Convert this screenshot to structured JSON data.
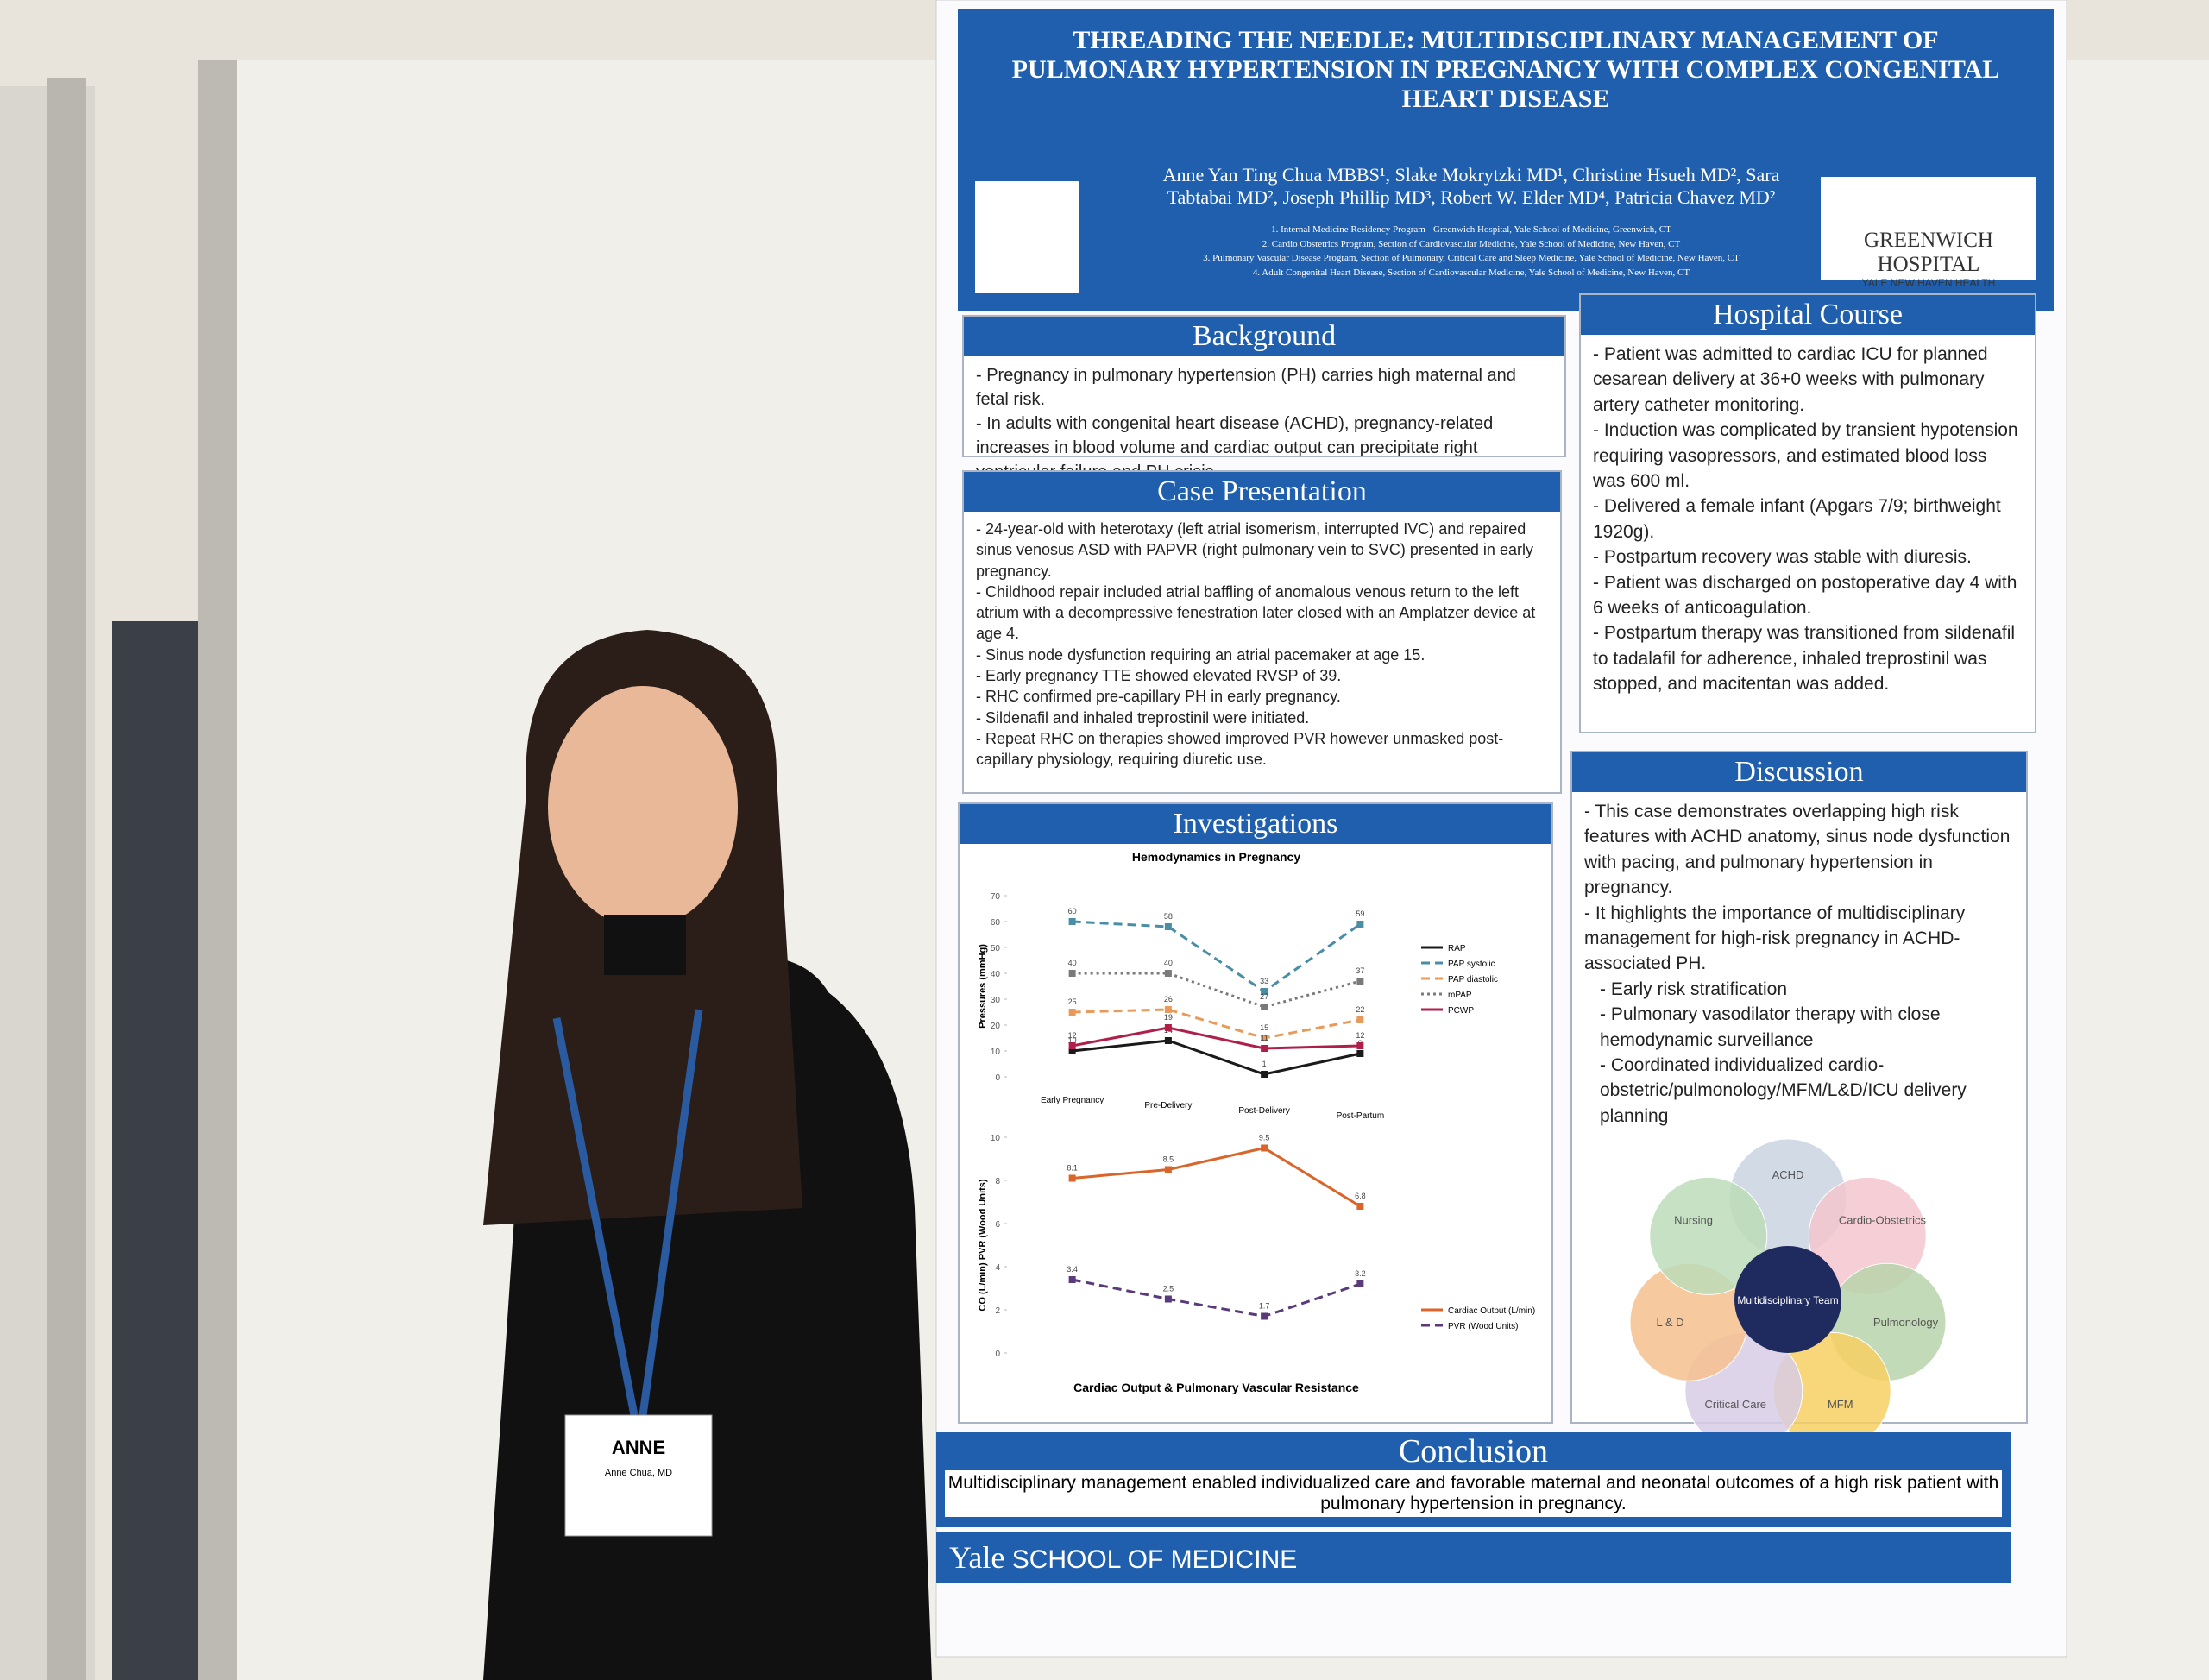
{
  "header": {
    "title": "THREADING THE NEEDLE: MULTIDISCIPLINARY MANAGEMENT OF PULMONARY HYPERTENSION IN PREGNANCY WITH COMPLEX CONGENITAL HEART DISEASE",
    "authors": "Anne Yan Ting Chua MBBS¹, Slake Mokrytzki MD¹, Christine Hsueh MD², Sara Tabtabai MD², Joseph Phillip MD³, Robert W. Elder MD⁴, Patricia Chavez MD²",
    "affiliations": [
      "1. Internal Medicine Residency Program - Greenwich Hospital, Yale School of Medicine, Greenwich, CT",
      "2. Cardio Obstetrics Program, Section of Cardiovascular Medicine, Yale School of Medicine, New Haven, CT",
      "3. Pulmonary Vascular Disease Program, Section of Pulmonary, Critical Care and Sleep Medicine, Yale School of Medicine, New Haven, CT",
      "4. Adult Congenital Heart Disease, Section of Cardiovascular Medicine, Yale School of Medicine, New Haven, CT"
    ],
    "logo": {
      "name": "GREENWICH HOSPITAL",
      "sub": "YALE NEW HAVEN HEALTH"
    }
  },
  "background": {
    "heading": "Background",
    "items": [
      "Pregnancy in pulmonary hypertension (PH) carries high maternal and fetal risk.",
      "In adults with congenital heart disease (ACHD), pregnancy-related increases in blood volume and cardiac output can precipitate right ventricular failure and PH crisis."
    ]
  },
  "case_presentation": {
    "heading": "Case Presentation",
    "items": [
      "24-year-old with heterotaxy (left atrial isomerism, interrupted IVC) and repaired sinus venosus ASD with PAPVR (right pulmonary vein to SVC) presented in early pregnancy.",
      "Childhood repair included atrial baffling of anomalous venous return to the left atrium with a decompressive fenestration later closed with an Amplatzer device at age 4.",
      "Sinus node dysfunction requiring an atrial pacemaker at age 15.",
      "Early pregnancy TTE showed elevated RVSP of 39.",
      "RHC confirmed pre-capillary PH in early pregnancy.",
      "Sildenafil and inhaled treprostinil were initiated.",
      "Repeat RHC on therapies showed improved PVR however unmasked post-capillary physiology, requiring diuretic use."
    ]
  },
  "investigations": {
    "heading": "Investigations",
    "charts": [
      {
        "type": "line",
        "title": "Hemodynamics in Pregnancy",
        "y_label": "Pressures (mmHg)",
        "categories": [
          "Early Pregnancy",
          "Pre-Delivery",
          "Post-Delivery",
          "Post-Partum"
        ],
        "ylim": [
          0,
          70
        ],
        "yticks": [
          0,
          10,
          20,
          30,
          40,
          50,
          60,
          70
        ],
        "series": [
          {
            "name": "RAP",
            "color": "#1a1a1a",
            "style": "solid",
            "values": [
              10,
              14,
              1,
              9
            ]
          },
          {
            "name": "PAP systolic",
            "color": "#4a8ea6",
            "style": "dashed",
            "values": [
              60,
              58,
              33,
              59
            ]
          },
          {
            "name": "PAP diastolic",
            "color": "#e89a5a",
            "style": "dashed",
            "values": [
              25,
              26,
              15,
              22
            ]
          },
          {
            "name": "mPAP",
            "color": "#7a7a7a",
            "style": "dotted",
            "values": [
              40,
              40,
              27,
              37
            ]
          },
          {
            "name": "PCWP",
            "color": "#b01e4a",
            "style": "solid",
            "values": [
              12,
              19,
              11,
              12
            ]
          }
        ]
      },
      {
        "type": "line",
        "title": "Cardiac Output & Pulmonary Vascular Resistance",
        "y_label": "CO (L/min)     PVR (Wood Units)",
        "ylim": [
          0,
          10
        ],
        "yticks": [
          0,
          2,
          4,
          6,
          8,
          10
        ],
        "series": [
          {
            "name": "Cardiac Output (L/min)",
            "color": "#d9652a",
            "style": "solid",
            "values": [
              8.1,
              8.5,
              9.5,
              6.8
            ]
          },
          {
            "name": "PVR (Wood Units)",
            "color": "#5a3a7a",
            "style": "dashed",
            "values": [
              3.4,
              2.5,
              1.7,
              3.2
            ]
          }
        ]
      }
    ]
  },
  "hospital_course": {
    "heading": "Hospital Course",
    "items": [
      "Patient was admitted to cardiac ICU for planned cesarean delivery at 36+0 weeks with pulmonary artery catheter monitoring.",
      "Induction was complicated by transient hypotension requiring vasopressors, and estimated blood loss was 600 ml.",
      "Delivered a female infant (Apgars 7/9; birthweight 1920g).",
      "Postpartum recovery was stable with diuresis.",
      "Patient was discharged on postoperative day 4 with 6 weeks of anticoagulation.",
      "Postpartum therapy was transitioned from sildenafil to tadalafil for adherence, inhaled treprostinil was stopped, and macitentan was added."
    ]
  },
  "discussion": {
    "heading": "Discussion",
    "items": [
      "This case demonstrates overlapping high risk features with ACHD anatomy, sinus node dysfunction with pacing, and pulmonary hypertension in pregnancy.",
      "It highlights the importance of multidisciplinary management for high-risk pregnancy in ACHD-associated PH."
    ],
    "subitems": [
      "Early risk stratification",
      "Pulmonary vasodilator therapy with close hemodynamic surveillance",
      "Coordinated individualized cardio-obstetric/pulmonology/MFM/L&D/ICU delivery planning"
    ],
    "diagram": {
      "center": "Multidisciplinary Team",
      "petals": [
        {
          "label": "ACHD",
          "color": "#c9d3e0"
        },
        {
          "label": "Cardio-Obstetrics",
          "color": "#f3c6cf"
        },
        {
          "label": "Pulmonology",
          "color": "#b9d3ac"
        },
        {
          "label": "MFM",
          "color": "#f7cf63"
        },
        {
          "label": "Critical Care",
          "color": "#d8cde6"
        },
        {
          "label": "L & D",
          "color": "#f6c08e"
        },
        {
          "label": "Nursing",
          "color": "#bcdcb8"
        }
      ]
    }
  },
  "conclusion": {
    "heading": "Conclusion",
    "text": "Multidisciplinary management enabled individualized care and favorable maternal and neonatal outcomes of a high risk patient with pulmonary hypertension in pregnancy."
  },
  "footer": {
    "yale": "Yale",
    "school": "SCHOOL OF MEDICINE"
  },
  "badge": {
    "name": "ANNE",
    "sub": "Anne Chua, MD"
  }
}
